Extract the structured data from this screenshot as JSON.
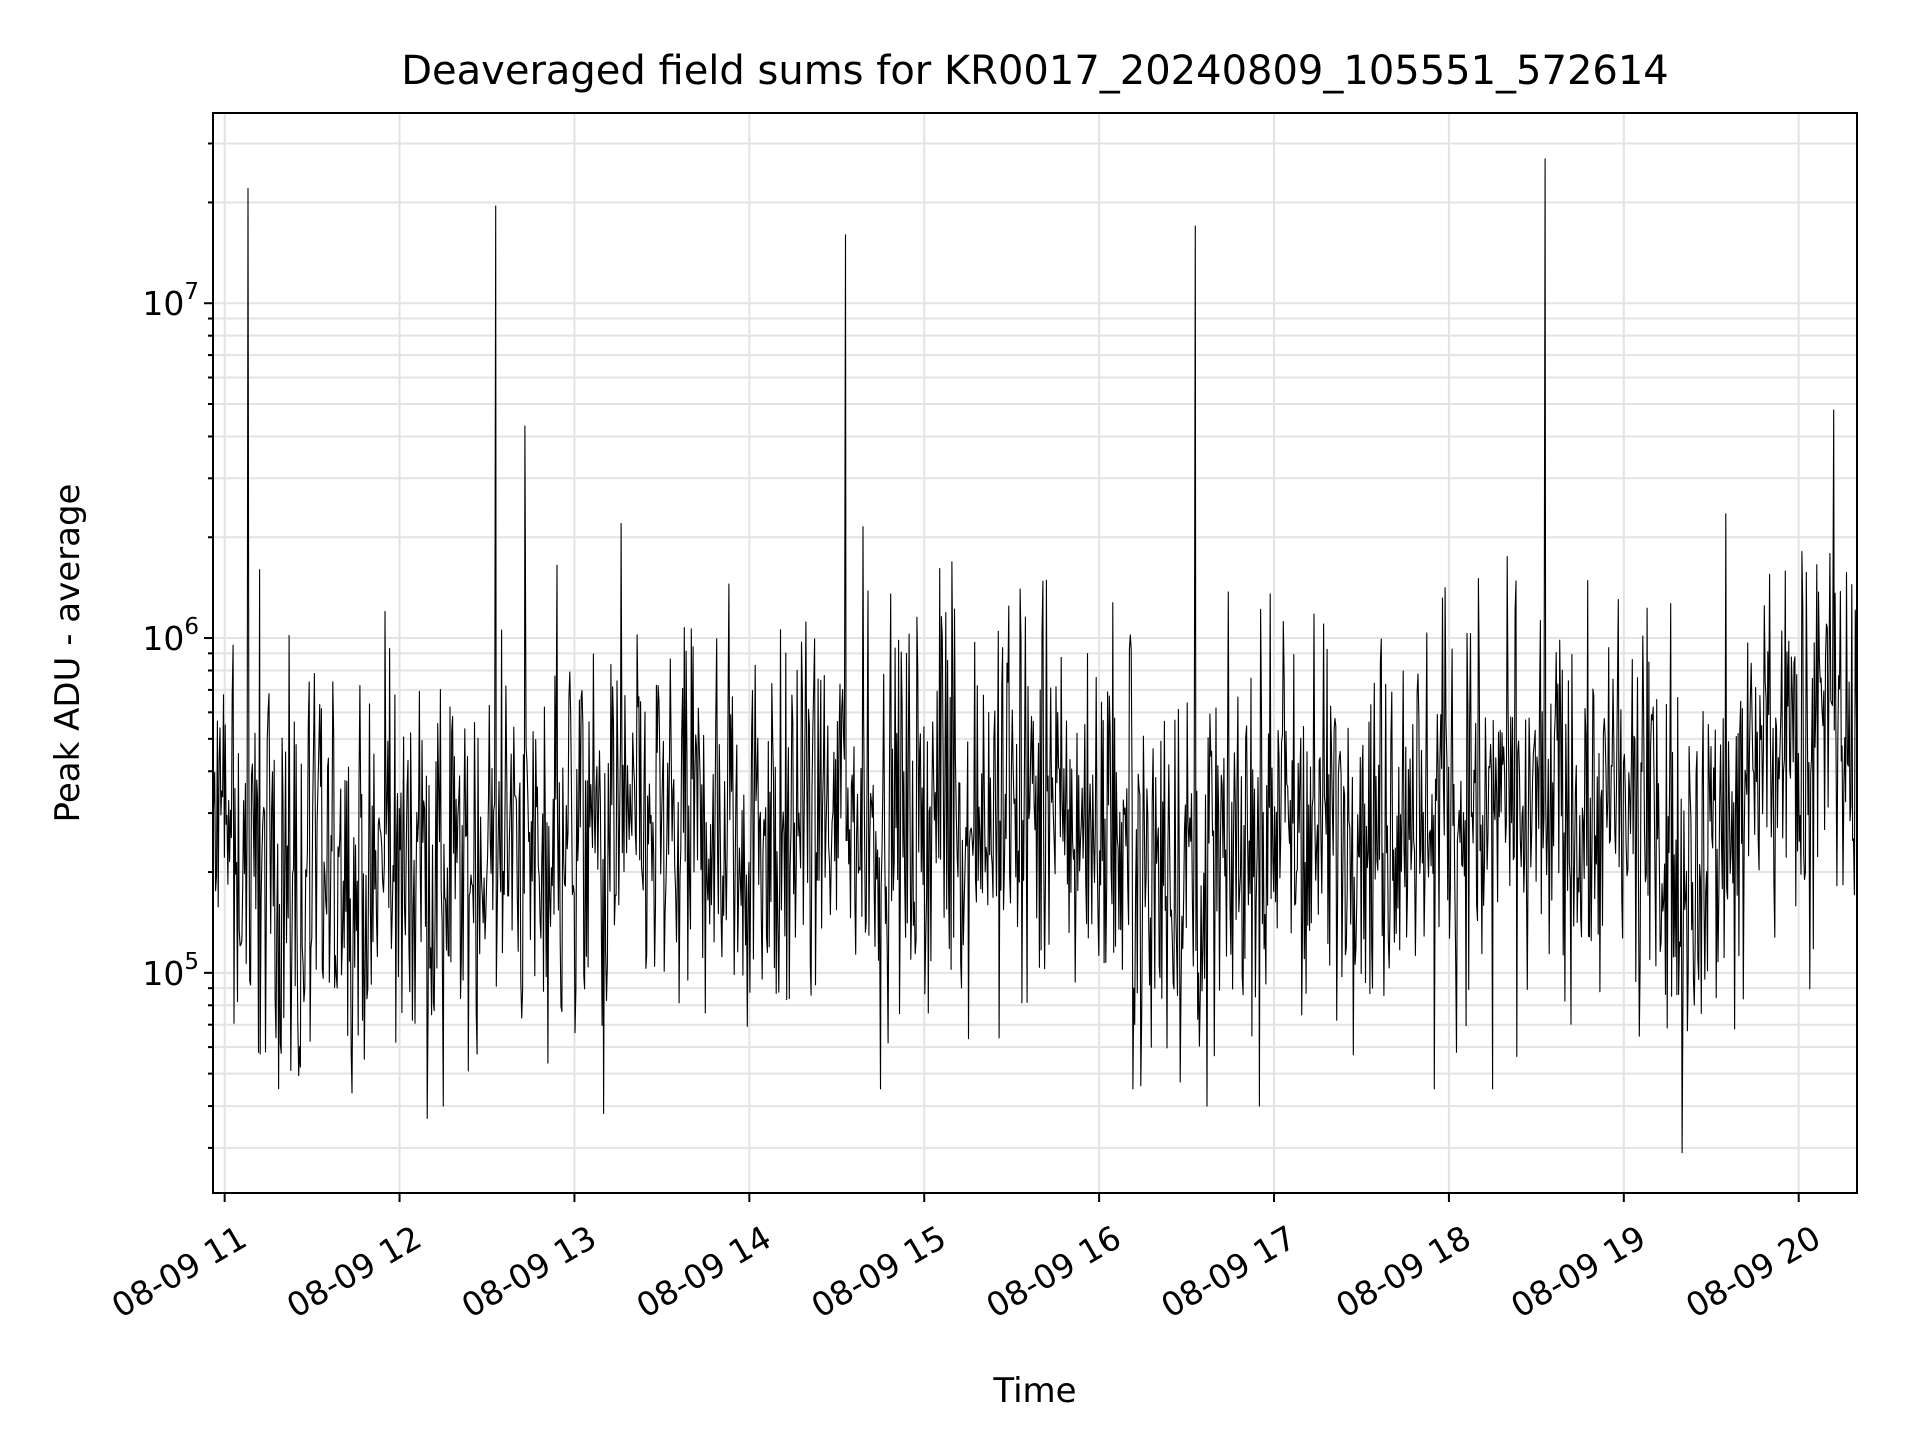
{
  "chart_data": {
    "type": "line",
    "title": "Deaveraged field sums for KR0017_20240809_105551_572614",
    "xlabel": "Time",
    "ylabel": "Peak ADU - average",
    "yscale": "log",
    "grid": true,
    "xlim": [
      "08-09 10:56",
      "08-09 20:20"
    ],
    "ylim": [
      22000,
      37000000
    ],
    "x_ticks": [
      "08-09 11",
      "08-09 12",
      "08-09 13",
      "08-09 14",
      "08-09 15",
      "08-09 16",
      "08-09 17",
      "08-09 18",
      "08-09 19",
      "08-09 20"
    ],
    "y_ticks": [
      {
        "base": "10",
        "exp": "5",
        "value": 100000
      },
      {
        "base": "10",
        "exp": "6",
        "value": 1000000
      },
      {
        "base": "10",
        "exp": "7",
        "value": 10000000
      }
    ],
    "series": [
      {
        "color": "#000000",
        "x_start": "08-09 10:56",
        "x_end": "08-09 20:20",
        "values_description_free": true,
        "baseline": [
          [
            "10:56",
            250000
          ],
          [
            "11:30",
            170000
          ],
          [
            "12:00",
            200000
          ],
          [
            "12:30",
            220000
          ],
          [
            "13:00",
            260000
          ],
          [
            "13:30",
            260000
          ],
          [
            "14:00",
            270000
          ],
          [
            "14:30",
            280000
          ],
          [
            "15:00",
            300000
          ],
          [
            "15:30",
            320000
          ],
          [
            "16:00",
            280000
          ],
          [
            "16:30",
            200000
          ],
          [
            "17:00",
            290000
          ],
          [
            "17:30",
            300000
          ],
          [
            "18:00",
            330000
          ],
          [
            "18:30",
            320000
          ],
          [
            "19:00",
            300000
          ],
          [
            "19:30",
            240000
          ],
          [
            "19:45",
            400000
          ],
          [
            "20:20",
            520000
          ]
        ],
        "peaks": [
          [
            "11:08",
            22000000
          ],
          [
            "11:12",
            1600000
          ],
          [
            "12:33",
            19500000
          ],
          [
            "12:43",
            4300000
          ],
          [
            "13:16",
            2200000
          ],
          [
            "13:53",
            1450000
          ],
          [
            "14:33",
            16000000
          ],
          [
            "14:39",
            2150000
          ],
          [
            "16:33",
            17000000
          ],
          [
            "18:33",
            27000000
          ],
          [
            "19:35",
            2350000
          ],
          [
            "20:12",
            4800000
          ],
          [
            "19:50",
            1550000
          ],
          [
            "12:54",
            1650000
          ],
          [
            "11:55",
            1200000
          ]
        ],
        "dips": [
          [
            "12:15",
            40000
          ],
          [
            "13:10",
            38000
          ],
          [
            "14:45",
            45000
          ],
          [
            "16:37",
            40000
          ],
          [
            "16:55",
            40000
          ],
          [
            "17:55",
            45000
          ],
          [
            "18:15",
            45000
          ],
          [
            "19:20",
            29000
          ],
          [
            "11:14",
            58000
          ],
          [
            "19:38",
            68000
          ]
        ]
      }
    ]
  }
}
